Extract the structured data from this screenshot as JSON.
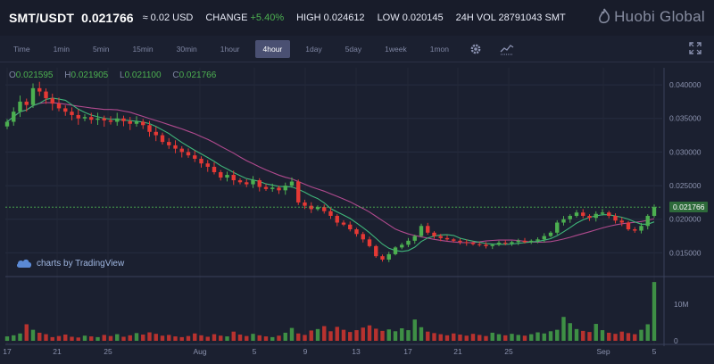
{
  "header": {
    "pair": "SMT/USDT",
    "last_price": "0.021766",
    "approx_usd": "≈ 0.02 USD",
    "change_label": "CHANGE",
    "change_value": "+5.40%",
    "high_label": "HIGH",
    "high_value": "0.024612",
    "low_label": "LOW",
    "low_value": "0.020145",
    "vol_label": "24H VOL",
    "vol_value": "28791043 SMT",
    "logo_text": "Huobi Global"
  },
  "toolbar": {
    "timeframes": [
      "Time",
      "1min",
      "5min",
      "15min",
      "30min",
      "1hour",
      "4hour",
      "1day",
      "5day",
      "1week",
      "1mon"
    ],
    "active": "4hour",
    "icons": [
      "gear-icon",
      "chart-style-icon",
      "fullscreen-icon"
    ]
  },
  "ohlc": {
    "o_label": "O",
    "o": "0.021595",
    "h_label": "H",
    "h": "0.021905",
    "l_label": "L",
    "l": "0.021100",
    "c_label": "C",
    "c": "0.021766"
  },
  "watermark": "charts by TradingView",
  "current_price_label": "0.021766",
  "colors": {
    "up": "#4caf50",
    "down": "#e53935",
    "ma_short": "#3fb67a",
    "ma_long": "#b04a8e",
    "background": "#1b2030"
  },
  "chart_data": {
    "type": "candlestick",
    "price_axis": {
      "ticks": [
        "0.040000",
        "0.035000",
        "0.030000",
        "0.025000",
        "0.020000",
        "0.015000"
      ],
      "range": [
        0.012,
        0.042
      ]
    },
    "volume_axis": {
      "ticks": [
        "10M",
        "0"
      ],
      "range": [
        0,
        17000000
      ]
    },
    "x_tick_labels": [
      "17",
      "21",
      "25",
      "Aug",
      "5",
      "9",
      "13",
      "17",
      "21",
      "25",
      "Sep",
      "5"
    ],
    "close_series": [
      0.0345,
      0.036,
      0.0375,
      0.037,
      0.0395,
      0.039,
      0.038,
      0.0372,
      0.0365,
      0.036,
      0.0355,
      0.035,
      0.0352,
      0.0348,
      0.035,
      0.0347,
      0.0345,
      0.035,
      0.0346,
      0.0342,
      0.0345,
      0.034,
      0.033,
      0.0325,
      0.0315,
      0.031,
      0.0305,
      0.03,
      0.0295,
      0.029,
      0.0283,
      0.0278,
      0.027,
      0.0262,
      0.0266,
      0.0258,
      0.0255,
      0.0252,
      0.0258,
      0.0248,
      0.0245,
      0.0247,
      0.0243,
      0.025,
      0.0256,
      0.0225,
      0.022,
      0.0215,
      0.0218,
      0.0212,
      0.0205,
      0.0195,
      0.0192,
      0.0185,
      0.0178,
      0.017,
      0.016,
      0.0145,
      0.014,
      0.0148,
      0.0158,
      0.0162,
      0.0168,
      0.0175,
      0.019,
      0.018,
      0.0175,
      0.0172,
      0.017,
      0.0168,
      0.0166,
      0.0165,
      0.0163,
      0.0162,
      0.016,
      0.0162,
      0.0165,
      0.0164,
      0.0166,
      0.0168,
      0.0166,
      0.0168,
      0.017,
      0.0175,
      0.018,
      0.0195,
      0.02,
      0.0205,
      0.021,
      0.0205,
      0.0202,
      0.0208,
      0.021,
      0.0205,
      0.0198,
      0.0195,
      0.0185,
      0.0183,
      0.019,
      0.0205,
      0.0218
    ],
    "volume_series": [
      1.2,
      1.5,
      2.0,
      4.5,
      3.0,
      2.2,
      1.8,
      1.0,
      1.3,
      1.7,
      1.1,
      0.9,
      1.4,
      1.2,
      1.0,
      1.6,
      1.3,
      1.8,
      1.1,
      1.5,
      2.1,
      1.7,
      2.3,
      1.9,
      1.4,
      1.6,
      1.2,
      1.0,
      1.3,
      2.0,
      1.5,
      1.1,
      1.8,
      1.4,
      1.2,
      2.5,
      1.7,
      1.3,
      1.9,
      1.5,
      1.2,
      1.0,
      1.4,
      2.2,
      3.5,
      2.0,
      1.6,
      2.8,
      3.2,
      4.0,
      2.6,
      3.8,
      3.0,
      2.4,
      2.9,
      3.6,
      4.2,
      3.3,
      2.7,
      3.1,
      2.6,
      3.4,
      2.9,
      5.8,
      3.7,
      2.5,
      2.1,
      1.8,
      1.5,
      2.0,
      1.7,
      1.4,
      1.9,
      1.6,
      1.3,
      2.2,
      1.8,
      1.5,
      1.9,
      1.6,
      1.4,
      1.8,
      2.3,
      2.0,
      2.6,
      3.0,
      6.5,
      4.8,
      3.2,
      2.7,
      2.4,
      4.6,
      2.9,
      2.2,
      1.9,
      2.5,
      2.1,
      1.8,
      3.0,
      4.5,
      16.0
    ]
  }
}
